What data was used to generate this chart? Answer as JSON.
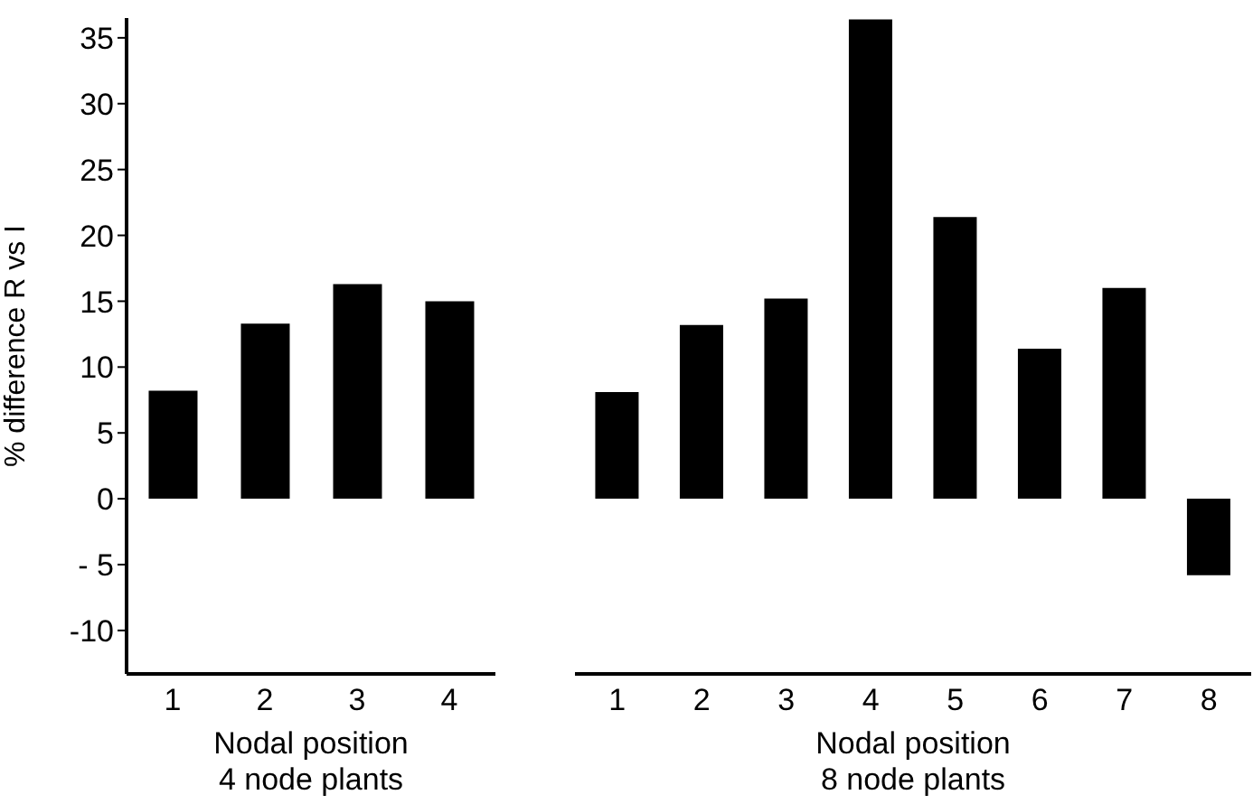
{
  "chart_data": [
    {
      "type": "bar",
      "ylabel": "% difference R vs I",
      "xlabel": "Nodal position\n4 node plants",
      "categories": [
        "1",
        "2",
        "3",
        "4"
      ],
      "values": [
        8.2,
        13.3,
        16.3,
        15.0
      ],
      "color": "#000000",
      "ylim": [
        -13.3,
        36.5
      ],
      "yticks": [
        {
          "value": -10,
          "label": "-10"
        },
        {
          "value": -5,
          "label": "- 5"
        },
        0,
        5,
        10,
        15,
        20,
        25,
        30,
        35
      ],
      "grid": false
    },
    {
      "type": "bar",
      "xlabel": "Nodal position\n8 node plants",
      "categories": [
        "1",
        "2",
        "3",
        "4",
        "5",
        "6",
        "7",
        "8"
      ],
      "values": [
        8.1,
        13.2,
        15.2,
        36.4,
        21.4,
        11.4,
        16.0,
        -5.8
      ],
      "color": "#000000",
      "ylim": [
        -13.3,
        36.5
      ],
      "tick_labels": "x",
      "grid": false
    }
  ]
}
